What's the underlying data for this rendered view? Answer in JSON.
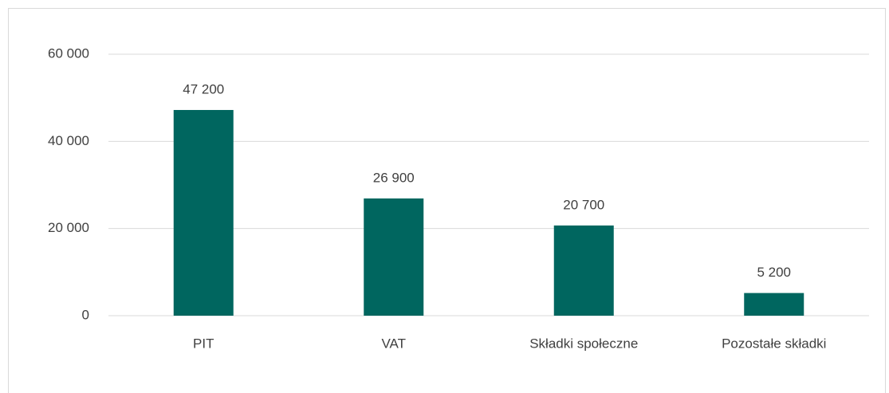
{
  "chart_data": {
    "type": "bar",
    "categories": [
      "PIT",
      "VAT",
      "Składki społeczne",
      "Pozostałe składki"
    ],
    "values": [
      47200,
      26900,
      20700,
      5200
    ],
    "value_labels": [
      "47 200",
      "26 900",
      "20 700",
      "5 200"
    ],
    "color": "#00665f",
    "ylim": [
      0,
      60000
    ],
    "yticks": [
      0,
      {
        "value": 20000,
        "label": "20 000"
      },
      {
        "value": 40000,
        "label": "40 000"
      },
      {
        "value": 60000,
        "label": "60 000"
      }
    ],
    "grid": true
  }
}
